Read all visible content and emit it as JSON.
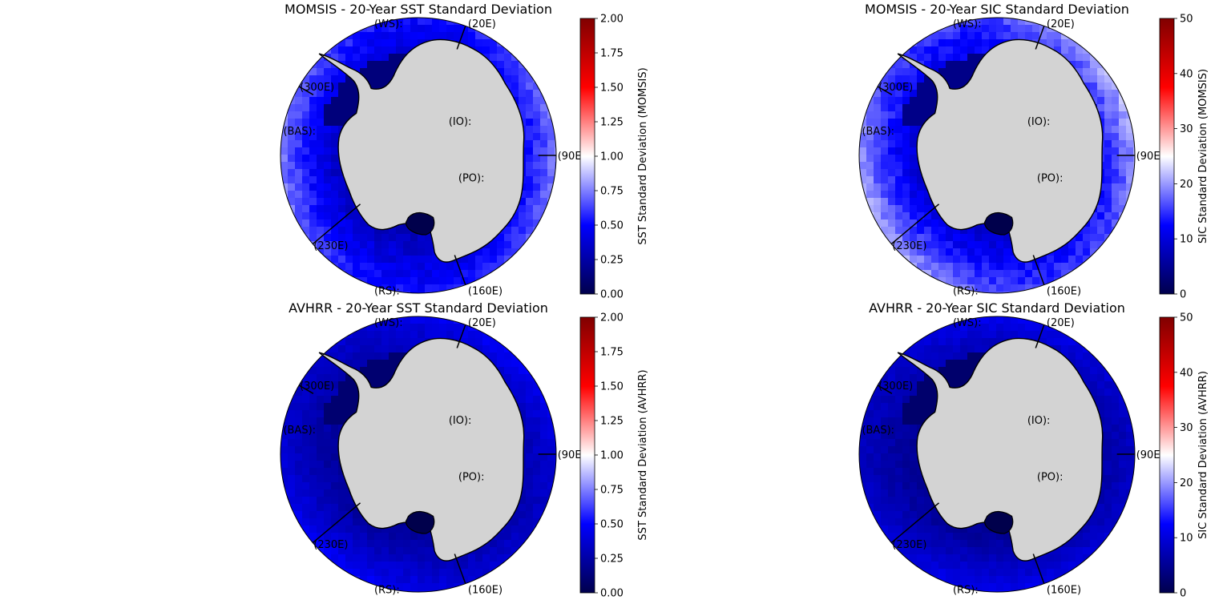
{
  "chart_data": [
    {
      "type": "heatmap",
      "projection": "south-polar-stereographic",
      "title": "MOMSIS - 20-Year SST Standard Deviation",
      "colorbar_label": "SST Standard Deviation (MOMSIS)",
      "colormap": "seismic",
      "vmin": 0.0,
      "vmax": 2.0,
      "colorbar_ticks": [
        "0.00",
        "0.25",
        "0.50",
        "0.75",
        "1.00",
        "1.25",
        "1.50",
        "1.75",
        "2.00"
      ],
      "value_range_estimate": [
        0.05,
        0.85
      ]
    },
    {
      "type": "heatmap",
      "projection": "south-polar-stereographic",
      "title": "MOMSIS - 20-Year SIC Standard Deviation",
      "colorbar_label": "SIC Standard Deviation (MOMSIS)",
      "colormap": "seismic",
      "vmin": 0,
      "vmax": 50,
      "colorbar_ticks": [
        "0",
        "10",
        "20",
        "30",
        "40",
        "50"
      ],
      "value_range_estimate": [
        2,
        24
      ]
    },
    {
      "type": "heatmap",
      "projection": "south-polar-stereographic",
      "title": "AVHRR - 20-Year SST Standard Deviation",
      "colorbar_label": "SST Standard Deviation (AVHRR)",
      "colormap": "seismic",
      "vmin": 0.0,
      "vmax": 2.0,
      "colorbar_ticks": [
        "0.00",
        "0.25",
        "0.50",
        "0.75",
        "1.00",
        "1.25",
        "1.50",
        "1.75",
        "2.00"
      ],
      "value_range_estimate": [
        0.05,
        0.55
      ]
    },
    {
      "type": "heatmap",
      "projection": "south-polar-stereographic",
      "title": "AVHRR - 20-Year SIC Standard Deviation",
      "colorbar_label": "SIC Standard Deviation (AVHRR)",
      "colormap": "seismic",
      "vmin": 0,
      "vmax": 50,
      "colorbar_ticks": [
        "0",
        "10",
        "20",
        "30",
        "40",
        "50"
      ],
      "value_range_estimate": [
        1,
        13
      ]
    }
  ],
  "regions": [
    {
      "label": "(WS):"
    },
    {
      "label": "(20E)"
    },
    {
      "label": "(300E)"
    },
    {
      "label": "(BAS):"
    },
    {
      "label": "(IO):"
    },
    {
      "label": "(90E)"
    },
    {
      "label": "(PO):"
    },
    {
      "label": "(230E)"
    },
    {
      "label": "(RS):"
    },
    {
      "label": "(160E)"
    }
  ],
  "colors": {
    "land": "#d3d3d3",
    "coastline": "#000000",
    "ocean_low": "#00004c",
    "ocean_mid": "#0000ff",
    "ocean_high": "#ffffff"
  }
}
